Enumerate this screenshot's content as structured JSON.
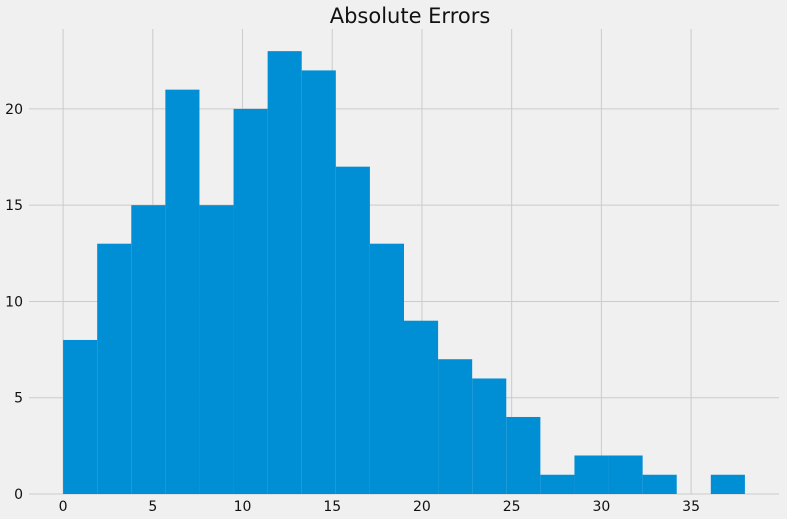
{
  "chart_data": {
    "type": "bar",
    "title": "Absolute Errors",
    "xlabel": "",
    "ylabel": "",
    "bin_edges": [
      0,
      1.9,
      3.8,
      5.7,
      7.6,
      9.5,
      11.4,
      13.3,
      15.2,
      17.1,
      19.0,
      20.9,
      22.8,
      24.7,
      26.6,
      28.5,
      30.4,
      32.3,
      34.2,
      36.1,
      38.0
    ],
    "values": [
      8,
      13,
      15,
      21,
      15,
      20,
      23,
      22,
      17,
      13,
      9,
      7,
      6,
      4,
      1,
      2,
      2,
      1,
      0,
      1
    ],
    "xlim": [
      -1.9,
      39.9
    ],
    "ylim": [
      0,
      24.15
    ],
    "xticks": [
      0,
      5,
      10,
      15,
      20,
      25,
      30,
      35
    ],
    "yticks": [
      0,
      5,
      10,
      15,
      20
    ],
    "grid": true,
    "colors": {
      "bar": "#008fd5",
      "background": "#f0f0f0",
      "grid": "#cbcbcb",
      "text": "#111111"
    }
  }
}
